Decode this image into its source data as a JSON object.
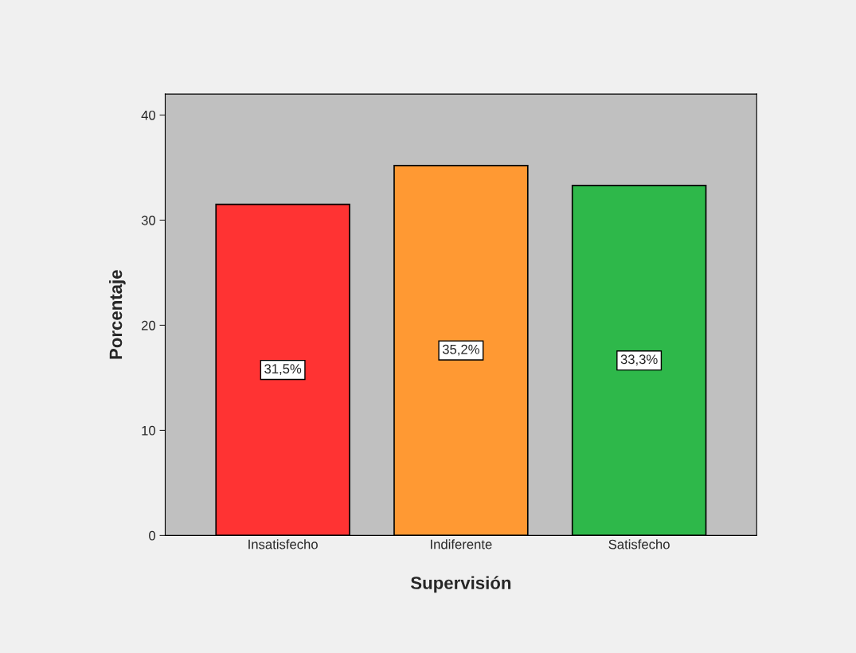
{
  "chart_data": {
    "type": "bar",
    "xlabel": "Supervisión",
    "ylabel": "Porcentaje",
    "categories": [
      "Insatisfecho",
      "Indiferente",
      "Satisfecho"
    ],
    "values": [
      31.5,
      35.2,
      33.3
    ],
    "colors": [
      "#ff3333",
      "#ff9933",
      "#2eb84a"
    ],
    "value_labels": [
      "31,5%",
      "35,2%",
      "33,3%"
    ],
    "ylim": [
      0,
      42
    ],
    "yticks": [
      0,
      10,
      20,
      30,
      40
    ],
    "grid": false,
    "legend": false
  }
}
